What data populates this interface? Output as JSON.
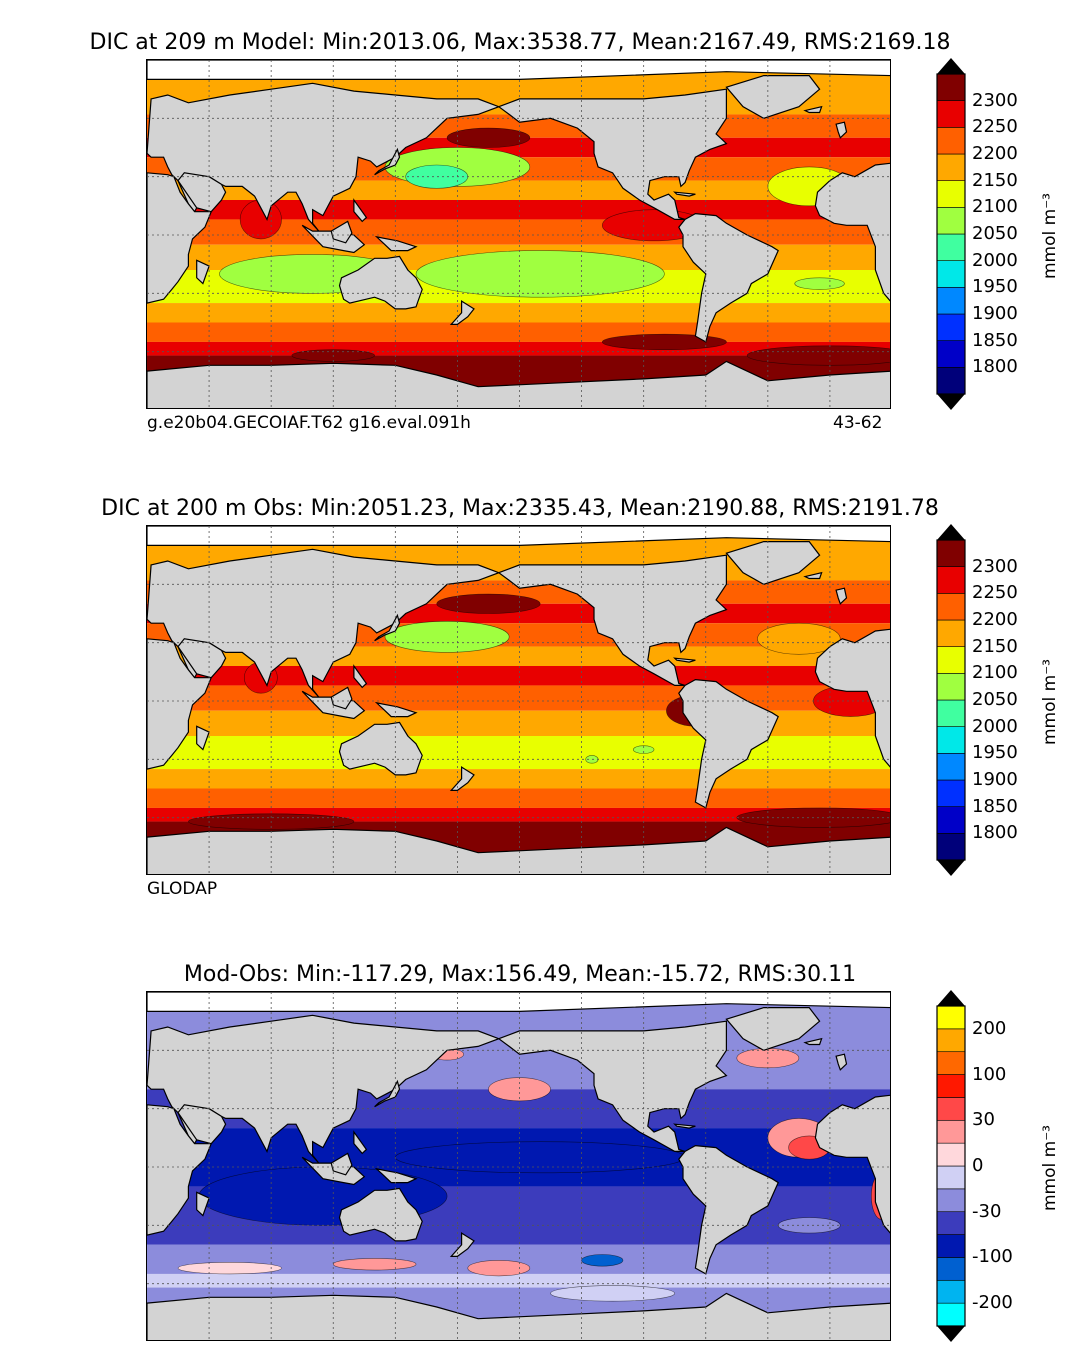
{
  "chart_data": [
    {
      "type": "heatmap",
      "title": "DIC at 209 m Model: Min:2013.06, Max:3538.77, Mean:2167.49, RMS:2169.18",
      "stats": {
        "min": 2013.06,
        "max": 3538.77,
        "mean": 2167.49,
        "rms": 2169.18
      },
      "footer_left": "g.e20b04.GECOIAF.T62 g16.eval.091h",
      "footer_right": "43-62",
      "colorbar": {
        "units": "mmol m⁻³",
        "tick_labels": [
          "1800",
          "1850",
          "1900",
          "1950",
          "2000",
          "2050",
          "2100",
          "2150",
          "2200",
          "2250",
          "2300"
        ],
        "colors": [
          "#00007a",
          "#0000c8",
          "#0030ff",
          "#0088ff",
          "#00e8e8",
          "#40ffa0",
          "#a0ff40",
          "#e8ff00",
          "#ffa800",
          "#ff6000",
          "#e80000",
          "#800000"
        ]
      }
    },
    {
      "type": "heatmap",
      "title": "DIC at 200 m Obs: Min:2051.23, Max:2335.43, Mean:2190.88, RMS:2191.78",
      "stats": {
        "min": 2051.23,
        "max": 2335.43,
        "mean": 2190.88,
        "rms": 2191.78
      },
      "footer_left": "GLODAP",
      "colorbar": {
        "units": "mmol m⁻³",
        "tick_labels": [
          "1800",
          "1850",
          "1900",
          "1950",
          "2000",
          "2050",
          "2100",
          "2150",
          "2200",
          "2250",
          "2300"
        ],
        "colors": [
          "#00007a",
          "#0000c8",
          "#0030ff",
          "#0088ff",
          "#00e8e8",
          "#40ffa0",
          "#a0ff40",
          "#e8ff00",
          "#ffa800",
          "#ff6000",
          "#e80000",
          "#800000"
        ]
      }
    },
    {
      "type": "heatmap",
      "title": "Mod-Obs: Min:-117.29, Max:156.49, Mean:-15.72, RMS:30.11",
      "stats": {
        "min": -117.29,
        "max": 156.49,
        "mean": -15.72,
        "rms": 30.11
      },
      "colorbar": {
        "units": "mmol m⁻³",
        "tick_labels": [
          "-200",
          "-100",
          "-30",
          "0",
          "30",
          "100",
          "200"
        ],
        "colors": [
          "#00ffff",
          "#00b4f0",
          "#0060d0",
          "#0018b0",
          "#3c3cbc",
          "#8c8cdc",
          "#d0d0f4",
          "#ffd8dc",
          "#ff9898",
          "#ff4848",
          "#ff1800",
          "#ff6800",
          "#ffa800",
          "#ffff00"
        ]
      }
    }
  ],
  "colors": {
    "land": "#d3d3d3",
    "missing": "#ffffff",
    "grid": "#555555"
  }
}
